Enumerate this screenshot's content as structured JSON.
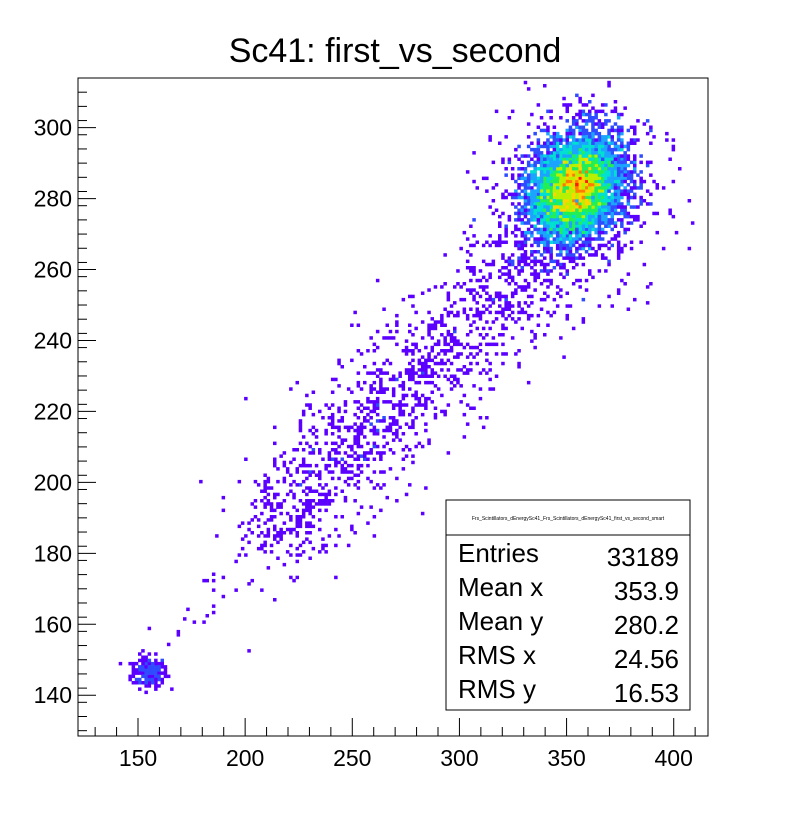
{
  "chart_data": {
    "type": "heatmap",
    "title": "Sc41: first_vs_second",
    "xlabel": "",
    "ylabel": "",
    "xlim": [
      122,
      416
    ],
    "ylim": [
      128.5,
      314
    ],
    "x_ticks": [
      150,
      200,
      250,
      300,
      350,
      400
    ],
    "y_ticks": [
      140,
      160,
      180,
      200,
      220,
      240,
      260,
      280,
      300
    ],
    "x_tick_labels": [
      "150",
      "200",
      "250",
      "300",
      "350",
      "400"
    ],
    "y_tick_labels": [
      "140",
      "160",
      "180",
      "200",
      "220",
      "240",
      "260",
      "280",
      "300"
    ],
    "colormap": [
      "#5b00ff",
      "#2f4cff",
      "#1aa3ff",
      "#00e0d0",
      "#22ee55",
      "#b8f000",
      "#ffd400",
      "#ff7a00",
      "#ff1a00"
    ],
    "clusters": [
      {
        "cx": 155,
        "cy": 146.5,
        "sx": 4,
        "sy": 2.5,
        "peak": "low"
      },
      {
        "cx": 290,
        "cy": 225,
        "sx": 35,
        "sy": 20,
        "peak": "low",
        "shape": "diagonal-band"
      },
      {
        "cx": 355,
        "cy": 282,
        "sx": 11,
        "sy": 7,
        "peak": "high",
        "peak_x": 354,
        "peak_y": 283
      }
    ],
    "stats": {
      "name": "Frs_Scintillators_dEnergySc41_Frs_Scintillators_dEnergySc41_first_vs_second_smart",
      "rows": [
        {
          "label": "Entries",
          "value": "33189"
        },
        {
          "label": "Mean x",
          "value": "353.9"
        },
        {
          "label": "Mean y",
          "value": "280.2"
        },
        {
          "label": "RMS x",
          "value": "24.56"
        },
        {
          "label": "RMS y",
          "value": "16.53"
        }
      ]
    }
  }
}
